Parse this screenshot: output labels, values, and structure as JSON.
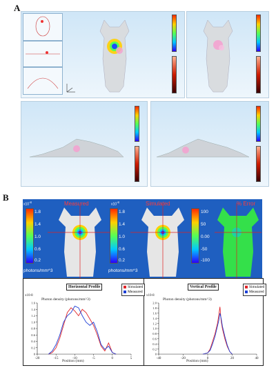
{
  "panel_a_label": "A",
  "panel_b_label": "B",
  "colors": {
    "measured": "#1d3fd6",
    "simulated": "#e0262a",
    "crosshair": "#e02020",
    "error_bg": "#34e04a"
  },
  "icons": [
    "body-surface-3d",
    "colorbar-rainbow",
    "colorbar-red",
    "axes-gizmo"
  ],
  "maps": {
    "measured_title": "Measured",
    "simulated_title": "Simulated",
    "error_title": "% Error",
    "photon_scale_labels": [
      "1.8",
      "1.4",
      "1.0",
      "0.6",
      "0.2"
    ],
    "photon_scale_exp": "x10",
    "photon_scale_exp_power": "-8",
    "photon_unit": "photons/mm^3",
    "error_scale_labels": [
      "100",
      "50",
      "0.00",
      "-50",
      "-100"
    ]
  },
  "chart_data": [
    {
      "type": "line",
      "title": "Horizontal Profile",
      "xlabel": "Position (mm)",
      "ylabel": "Photon density (photons/mm^3)",
      "y_exponent": "x10-8",
      "xlim": [
        -20,
        5
      ],
      "ylim": [
        0,
        1.6
      ],
      "xticks": [
        "-20",
        "-15",
        "-10",
        "-5",
        "0",
        "5"
      ],
      "yticks": [
        "0",
        "0.2",
        "0.4",
        "0.6",
        "0.8",
        "1.0",
        "1.2",
        "1.4",
        "1.6"
      ],
      "legend": [
        "Simulated",
        "Measured"
      ],
      "series": [
        {
          "name": "Simulated",
          "x": [
            -17,
            -16,
            -15,
            -14,
            -13,
            -12,
            -11,
            -10,
            -9,
            -8,
            -7,
            -6,
            -5,
            -4,
            -3,
            -2,
            -1,
            0,
            1
          ],
          "y": [
            0,
            0.05,
            0.2,
            0.5,
            0.9,
            1.3,
            1.45,
            1.35,
            1.2,
            1.4,
            1.3,
            1.1,
            0.9,
            0.6,
            0.25,
            0.1,
            0.35,
            0.05,
            0
          ]
        },
        {
          "name": "Measured",
          "x": [
            -17,
            -16,
            -15,
            -14,
            -13,
            -12,
            -11,
            -10,
            -9,
            -8,
            -7,
            -6,
            -5,
            -4,
            -3,
            -2,
            -1,
            0,
            1
          ],
          "y": [
            0,
            0.1,
            0.3,
            0.6,
            1.0,
            1.2,
            1.3,
            1.5,
            1.45,
            1.2,
            1.0,
            0.9,
            1.0,
            0.7,
            0.3,
            0.15,
            0.25,
            0.05,
            0
          ]
        }
      ]
    },
    {
      "type": "line",
      "title": "Vertical Profile",
      "xlabel": "Position (mm)",
      "ylabel": "Photon density (photons/mm^3)",
      "y_exponent": "x10-8",
      "xlim": [
        -40,
        40
      ],
      "ylim": [
        0,
        2.0
      ],
      "xticks": [
        "-40",
        "-20",
        "0",
        "20",
        "40"
      ],
      "yticks": [
        "0",
        "0.2",
        "0.4",
        "0.6",
        "0.8",
        "1.0",
        "1.2",
        "1.4",
        "1.6",
        "1.8",
        "2.0"
      ],
      "legend": [
        "Simulated",
        "Measured"
      ],
      "series": [
        {
          "name": "Simulated",
          "x": [
            -4,
            0,
            2,
            4,
            6,
            8,
            9,
            10,
            11,
            12,
            14,
            16,
            18,
            20
          ],
          "y": [
            0,
            0.05,
            0.2,
            0.5,
            0.8,
            1.2,
            1.5,
            1.85,
            1.3,
            1.0,
            0.6,
            0.3,
            0.1,
            0
          ]
        },
        {
          "name": "Measured",
          "x": [
            -4,
            0,
            2,
            4,
            6,
            8,
            9,
            10,
            11,
            12,
            14,
            16,
            18,
            20
          ],
          "y": [
            0,
            0.05,
            0.15,
            0.4,
            0.7,
            1.1,
            1.3,
            1.6,
            1.4,
            1.1,
            0.7,
            0.35,
            0.1,
            0
          ]
        }
      ]
    }
  ]
}
